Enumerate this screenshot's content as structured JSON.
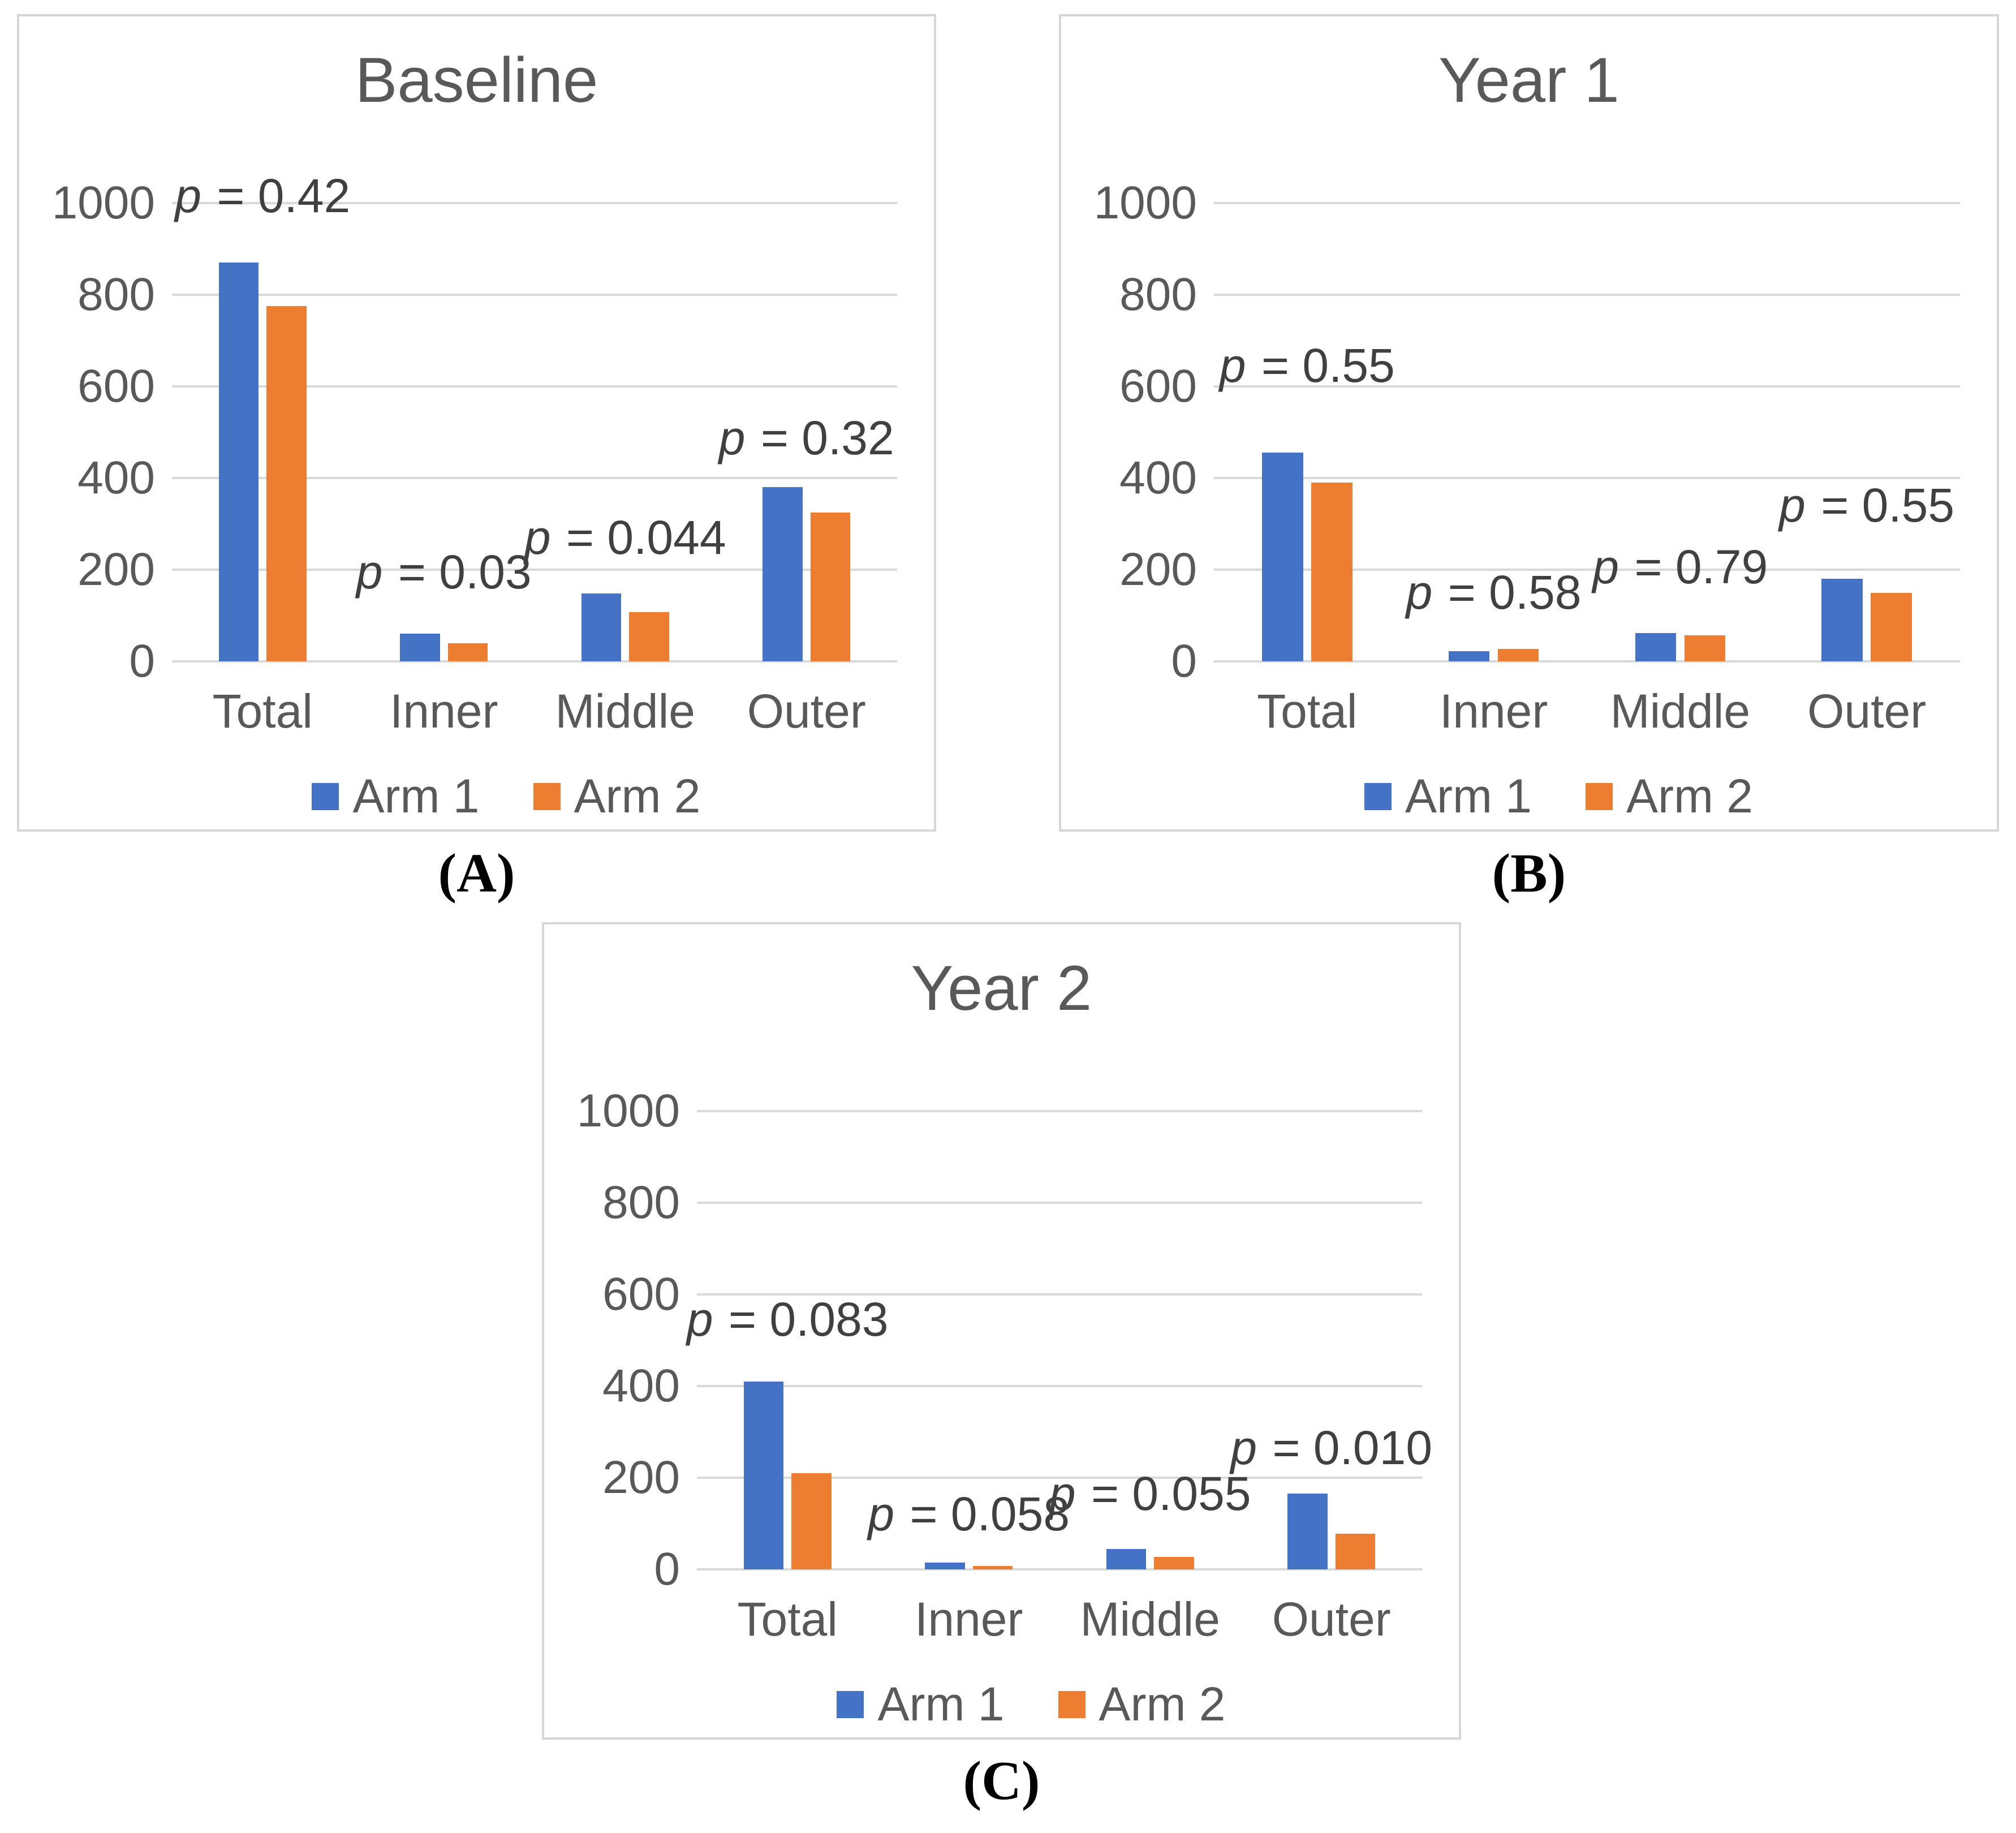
{
  "figure": {
    "arm1_color": "#4472C4",
    "arm2_color": "#ED7D31",
    "axis_text_color": "#595959",
    "annotation_text_color": "#404040",
    "gridline_color": "#D9D9D9",
    "panel_border_color": "#D6D6D6"
  },
  "panel_labels": [
    "(A)",
    "(B)",
    "(C)"
  ],
  "chart_data": [
    {
      "type": "bar",
      "title": "Baseline",
      "categories": [
        "Total",
        "Inner",
        "Middle",
        "Outer"
      ],
      "series": [
        {
          "name": "Arm 1",
          "color": "#4472C4",
          "values": [
            870,
            60,
            148,
            380
          ]
        },
        {
          "name": "Arm 2",
          "color": "#ED7D31",
          "values": [
            775,
            40,
            107,
            325
          ]
        }
      ],
      "annotations": [
        {
          "category": "Total",
          "text": "p = 0.42",
          "y": 955
        },
        {
          "category": "Inner",
          "text": "p = 0.03",
          "y": 135
        },
        {
          "category": "Middle",
          "text": "p = 0.044",
          "y": 210
        },
        {
          "category": "Outer",
          "text": "p = 0.32",
          "y": 427
        }
      ],
      "ylim": [
        0,
        1000
      ],
      "yticks": [
        0,
        200,
        400,
        600,
        800,
        1000
      ],
      "grid": true,
      "legend_position": "bottom",
      "legend": [
        "Arm 1",
        "Arm 2"
      ]
    },
    {
      "type": "bar",
      "title": "Year 1",
      "categories": [
        "Total",
        "Inner",
        "Middle",
        "Outer"
      ],
      "series": [
        {
          "name": "Arm 1",
          "color": "#4472C4",
          "values": [
            455,
            22,
            62,
            180
          ]
        },
        {
          "name": "Arm 2",
          "color": "#ED7D31",
          "values": [
            390,
            27,
            57,
            150
          ]
        }
      ],
      "annotations": [
        {
          "category": "Total",
          "text": "p = 0.55",
          "y": 585
        },
        {
          "category": "Inner",
          "text": "p = 0.58",
          "y": 90
        },
        {
          "category": "Middle",
          "text": "p = 0.79",
          "y": 146
        },
        {
          "category": "Outer",
          "text": "p = 0.55",
          "y": 280
        }
      ],
      "ylim": [
        0,
        1000
      ],
      "yticks": [
        0,
        200,
        400,
        600,
        800,
        1000
      ],
      "grid": true,
      "legend_position": "bottom",
      "legend": [
        "Arm 1",
        "Arm 2"
      ]
    },
    {
      "type": "bar",
      "title": "Year 2",
      "categories": [
        "Total",
        "Inner",
        "Middle",
        "Outer"
      ],
      "series": [
        {
          "name": "Arm 1",
          "color": "#4472C4",
          "values": [
            410,
            15,
            45,
            165
          ]
        },
        {
          "name": "Arm 2",
          "color": "#ED7D31",
          "values": [
            210,
            8,
            27,
            78
          ]
        }
      ],
      "annotations": [
        {
          "category": "Total",
          "text": "p = 0.083",
          "y": 485
        },
        {
          "category": "Inner",
          "text": "p = 0.058",
          "y": 60
        },
        {
          "category": "Middle",
          "text": "p = 0.055",
          "y": 105
        },
        {
          "category": "Outer",
          "text": "p = 0.010",
          "y": 205
        }
      ],
      "ylim": [
        0,
        1000
      ],
      "yticks": [
        0,
        200,
        400,
        600,
        800,
        1000
      ],
      "grid": true,
      "legend_position": "bottom",
      "legend": [
        "Arm 1",
        "Arm 2"
      ]
    }
  ]
}
